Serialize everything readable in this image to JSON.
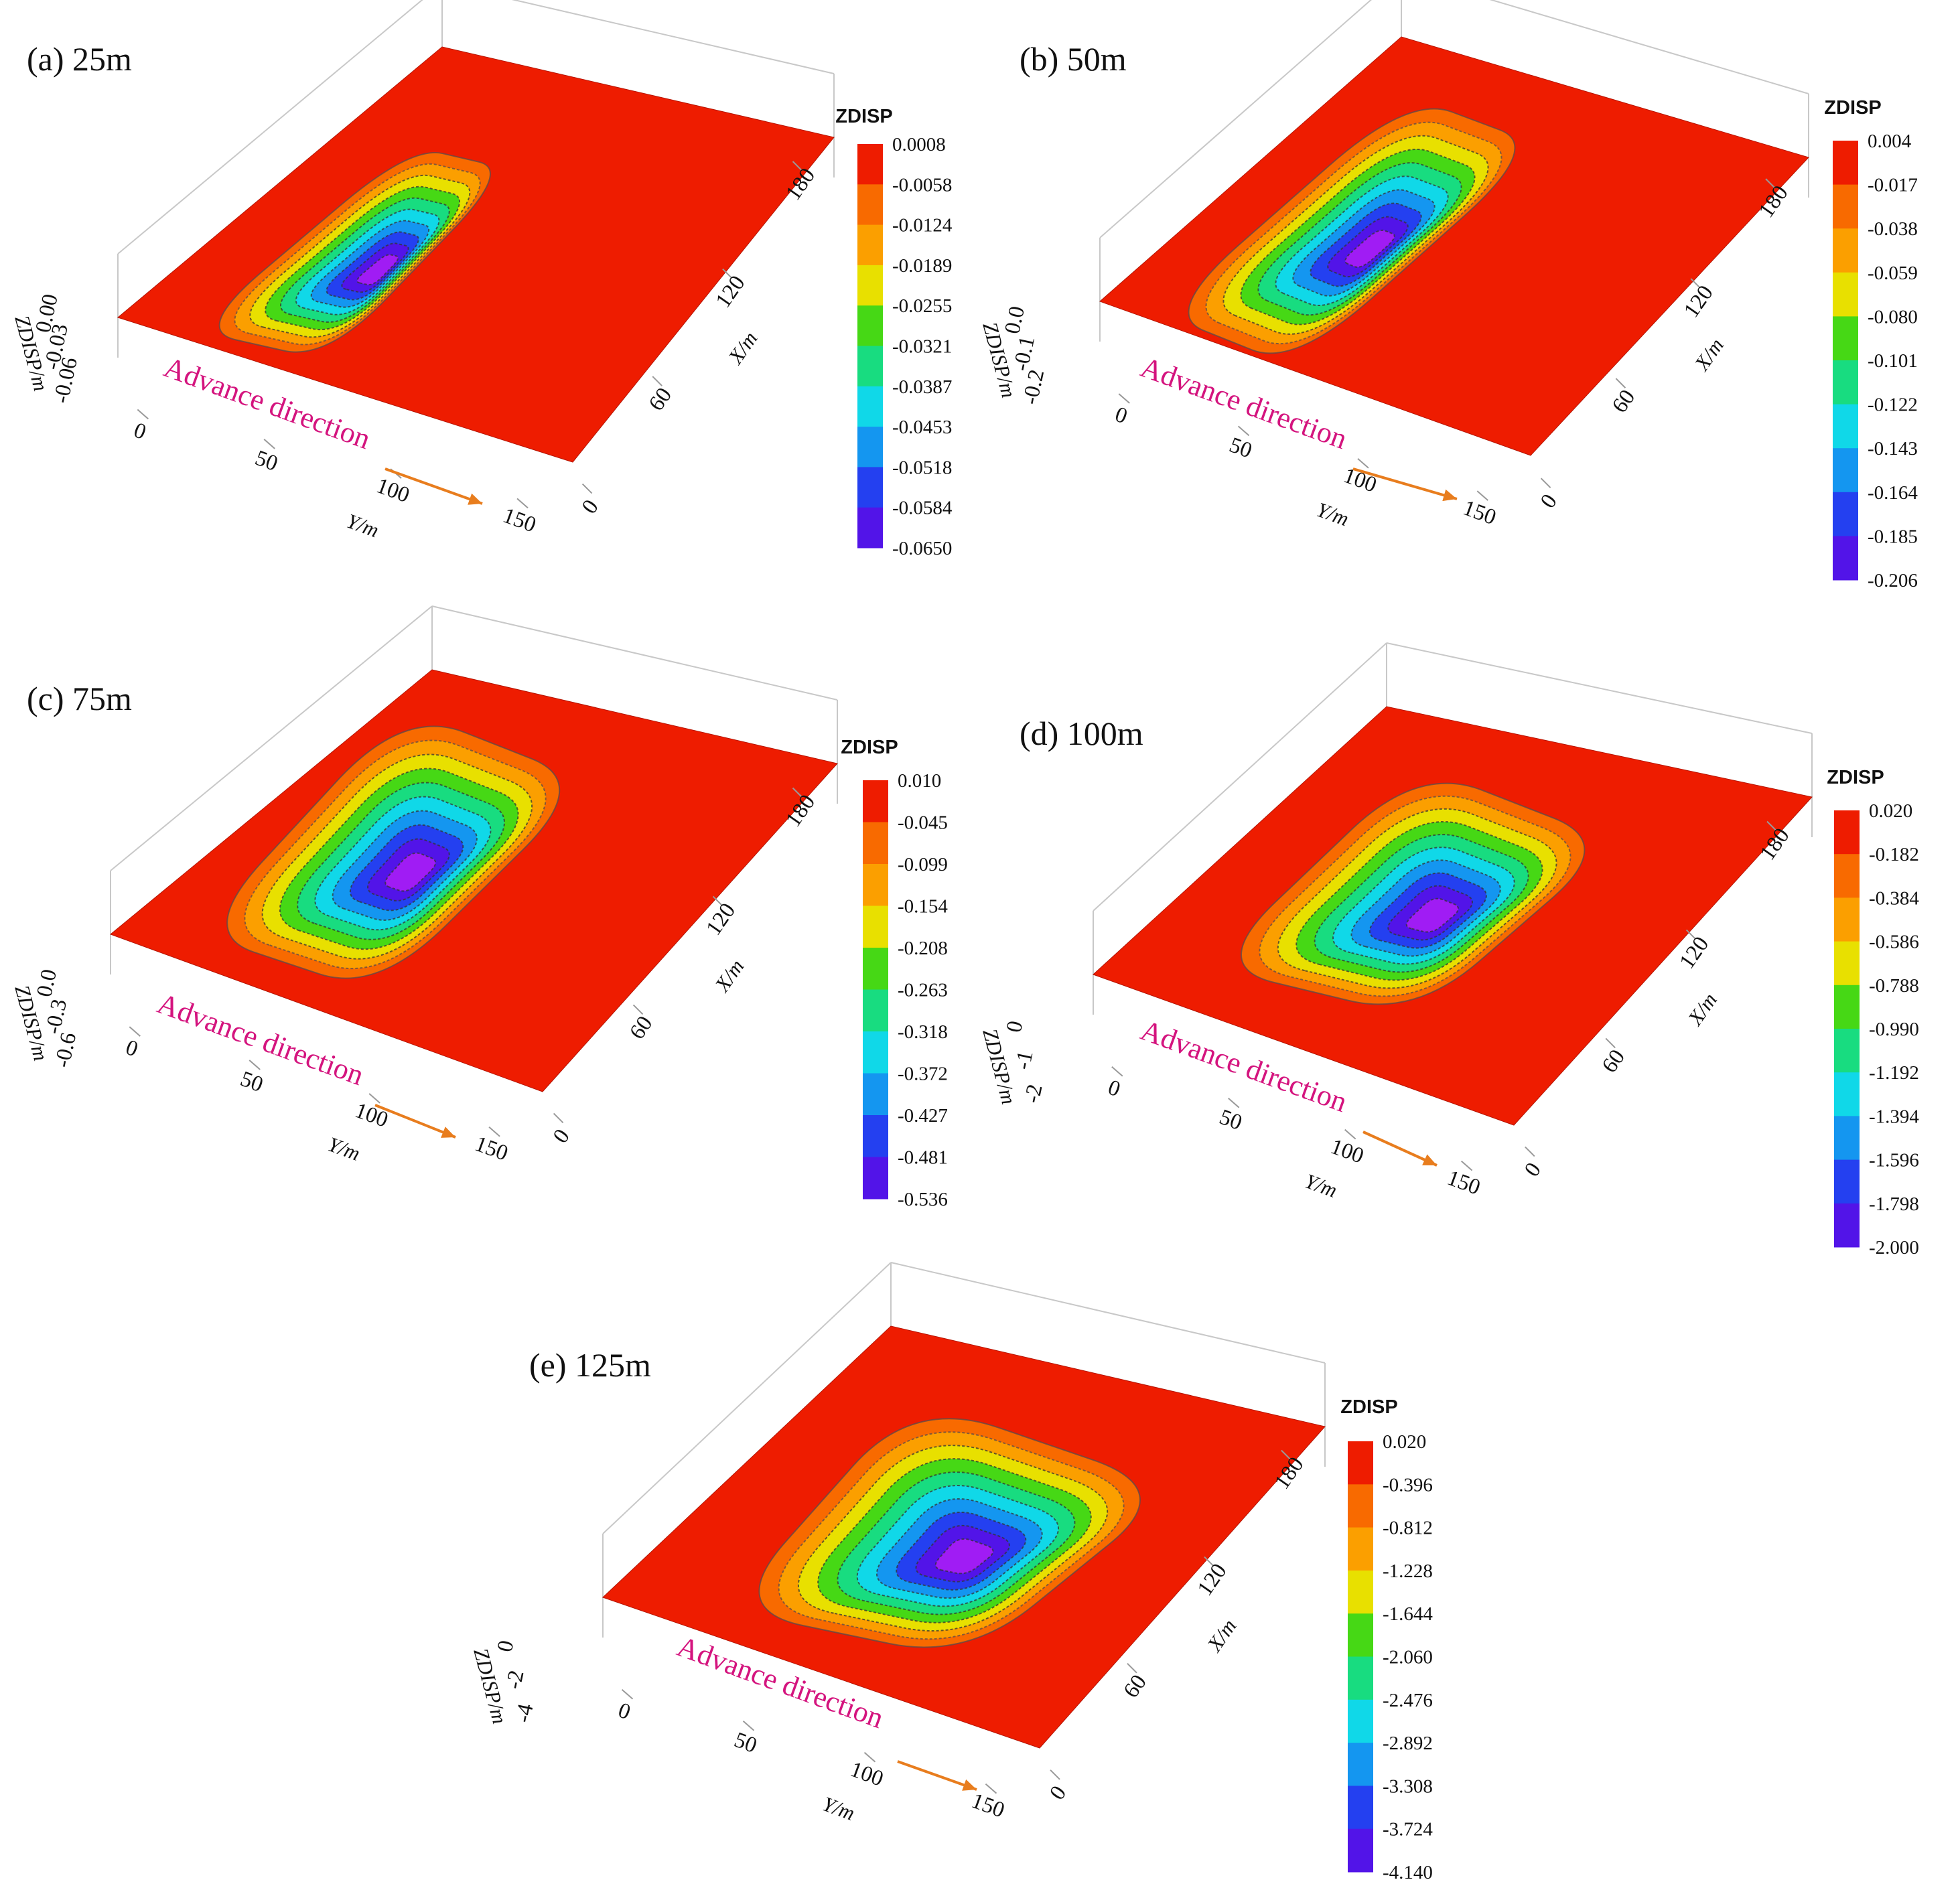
{
  "figure": {
    "advance_label": "Advance direction",
    "colors": [
      "#ee1c00",
      "#f86a00",
      "#fb9f00",
      "#e8e000",
      "#46d815",
      "#18dc80",
      "#10d8e8",
      "#1496f0",
      "#2440f0",
      "#5214e8",
      "#a01cf4"
    ],
    "arrow_color": "#e87d1e",
    "label_color": "#d4147e"
  },
  "chart_data": [
    {
      "type": "surface",
      "panel": "a",
      "title": "(a) 25m",
      "advance_m": 25,
      "xlabel": "Y/m",
      "ylabel": "X/m",
      "zlabel": "ZDISP/m",
      "x_ticks": [
        "0",
        "50",
        "100",
        "150"
      ],
      "y_ticks": [
        "0",
        "60",
        "120",
        "180"
      ],
      "z_ticks": [
        "0.00",
        "-0.03",
        "-0.06"
      ],
      "colorbar_title": "ZDISP",
      "colorbar_levels": [
        "0.0008",
        "-0.0058",
        "-0.0124",
        "-0.0189",
        "-0.0255",
        "-0.0321",
        "-0.0387",
        "-0.0453",
        "-0.0518",
        "-0.0584",
        "-0.0650"
      ],
      "z_range": [
        -0.065,
        0.0008
      ]
    },
    {
      "type": "surface",
      "panel": "b",
      "title": "(b) 50m",
      "advance_m": 50,
      "xlabel": "Y/m",
      "ylabel": "X/m",
      "zlabel": "ZDISP/m",
      "x_ticks": [
        "0",
        "50",
        "100",
        "150"
      ],
      "y_ticks": [
        "0",
        "60",
        "120",
        "180"
      ],
      "z_ticks": [
        "0.0",
        "-0.1",
        "-0.2"
      ],
      "colorbar_title": "ZDISP",
      "colorbar_levels": [
        "0.004",
        "-0.017",
        "-0.038",
        "-0.059",
        "-0.080",
        "-0.101",
        "-0.122",
        "-0.143",
        "-0.164",
        "-0.185",
        "-0.206"
      ],
      "z_range": [
        -0.206,
        0.004
      ]
    },
    {
      "type": "surface",
      "panel": "c",
      "title": "(c) 75m",
      "advance_m": 75,
      "xlabel": "Y/m",
      "ylabel": "X/m",
      "zlabel": "ZDISP/m",
      "x_ticks": [
        "0",
        "50",
        "100",
        "150"
      ],
      "y_ticks": [
        "0",
        "60",
        "120",
        "180"
      ],
      "z_ticks": [
        "0.0",
        "-0.3",
        "-0.6"
      ],
      "colorbar_title": "ZDISP",
      "colorbar_levels": [
        "0.010",
        "-0.045",
        "-0.099",
        "-0.154",
        "-0.208",
        "-0.263",
        "-0.318",
        "-0.372",
        "-0.427",
        "-0.481",
        "-0.536"
      ],
      "z_range": [
        -0.536,
        0.01
      ]
    },
    {
      "type": "surface",
      "panel": "d",
      "title": "(d) 100m",
      "advance_m": 100,
      "xlabel": "Y/m",
      "ylabel": "X/m",
      "zlabel": "ZDISP/m",
      "x_ticks": [
        "0",
        "50",
        "100",
        "150"
      ],
      "y_ticks": [
        "0",
        "60",
        "120",
        "180"
      ],
      "z_ticks": [
        "0",
        "-1",
        "-2"
      ],
      "colorbar_title": "ZDISP",
      "colorbar_levels": [
        "0.020",
        "-0.182",
        "-0.384",
        "-0.586",
        "-0.788",
        "-0.990",
        "-1.192",
        "-1.394",
        "-1.596",
        "-1.798",
        "-2.000"
      ],
      "z_range": [
        -2.0,
        0.02
      ]
    },
    {
      "type": "surface",
      "panel": "e",
      "title": "(e) 125m",
      "advance_m": 125,
      "xlabel": "Y/m",
      "ylabel": "X/m",
      "zlabel": "ZDISP/m",
      "x_ticks": [
        "0",
        "50",
        "100",
        "150"
      ],
      "y_ticks": [
        "0",
        "60",
        "120",
        "180"
      ],
      "z_ticks": [
        "0",
        "-2",
        "-4"
      ],
      "colorbar_title": "ZDISP",
      "colorbar_levels": [
        "0.020",
        "-0.396",
        "-0.812",
        "-1.228",
        "-1.644",
        "-2.060",
        "-2.476",
        "-2.892",
        "-3.308",
        "-3.724",
        "-4.140"
      ],
      "z_range": [
        -4.14,
        0.02
      ]
    }
  ]
}
